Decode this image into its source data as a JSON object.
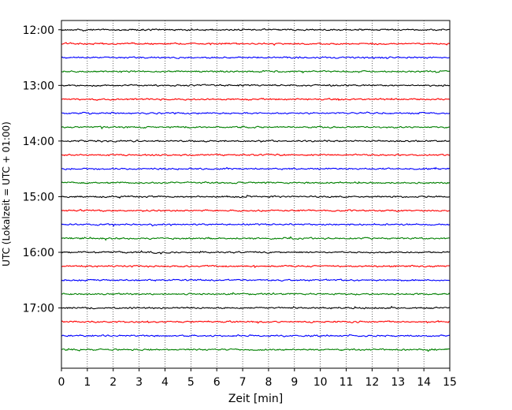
{
  "chart_data": {
    "type": "line",
    "title": "",
    "xlabel": "Zeit  [min]",
    "ylabel": "UTC (Lokalzeit = UTC + 01:00)",
    "xlim": [
      0,
      15
    ],
    "x_ticks": [
      "0",
      "1",
      "2",
      "3",
      "4",
      "5",
      "6",
      "7",
      "8",
      "9",
      "10",
      "11",
      "12",
      "13",
      "14",
      "15"
    ],
    "y_ticks": [
      "12:00",
      "13:00",
      "14:00",
      "15:00",
      "16:00",
      "17:00"
    ],
    "y_range": [
      "11:50",
      "18:05"
    ],
    "grid": "vertical dotted",
    "trace_interval_minutes": 15,
    "trace_start": "12:00",
    "trace_count": 24,
    "trace_colors": [
      "#000000",
      "#ff0000",
      "#0000ff",
      "#008000"
    ]
  }
}
